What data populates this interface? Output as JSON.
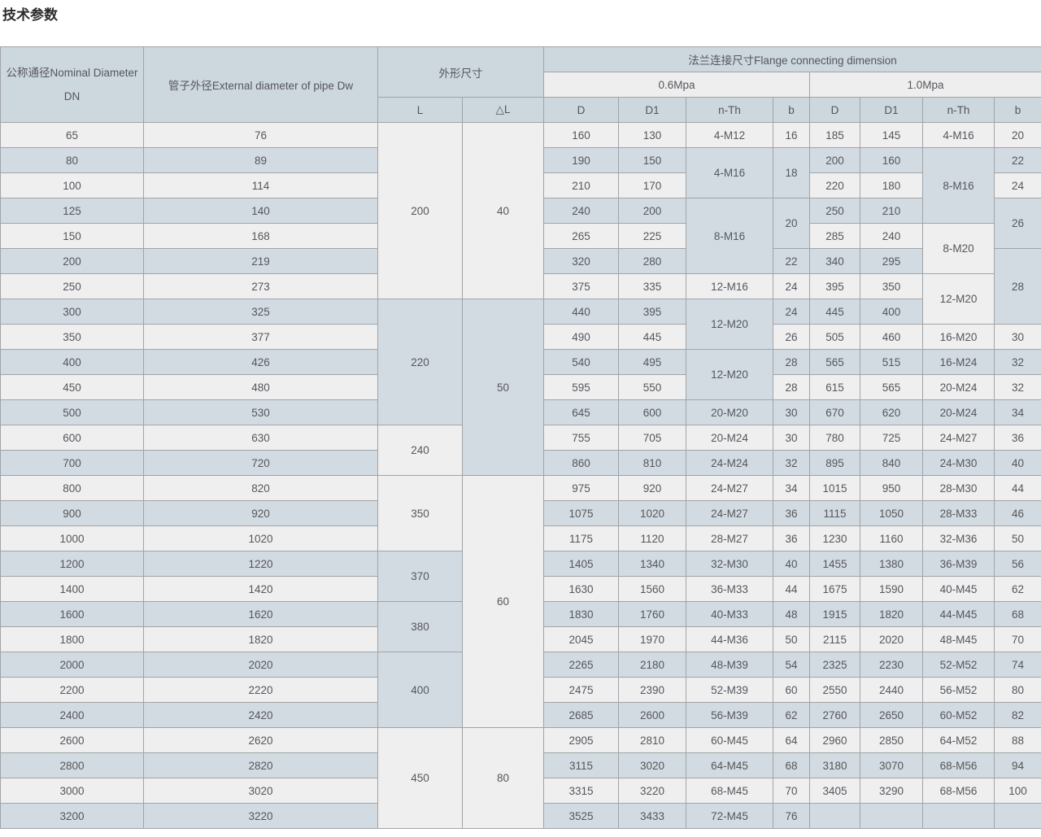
{
  "title": "技术参数",
  "table": {
    "headers": {
      "dn": "公称通径Nominal Diameter DN",
      "dw": "管子外径External diameter of pipe Dw",
      "overall": "外形尺寸",
      "flange": "法兰连接尺寸Flange connecting dimension",
      "p06": "0.6Mpa",
      "p10": "1.0Mpa",
      "l": "L",
      "dl": "△L",
      "d": "D",
      "d1": "D1",
      "nth": "n-Th",
      "b": "b"
    },
    "colors": {
      "header_blue": "#cdd7de",
      "header_light": "#eeeeee",
      "row_light": "#efefef",
      "row_blue": "#d3dbe2",
      "border": "#a0a4a7",
      "text": "#54575c"
    },
    "rows": [
      {
        "shade": "L",
        "cells": [
          {
            "t": "65"
          },
          {
            "t": "76"
          },
          {
            "t": "200",
            "rs": 7,
            "s": "L"
          },
          {
            "t": "40",
            "rs": 7,
            "s": "L"
          },
          {
            "t": "160"
          },
          {
            "t": "130"
          },
          {
            "t": "4-M12"
          },
          {
            "t": "16"
          },
          {
            "t": "185"
          },
          {
            "t": "145"
          },
          {
            "t": "4-M16"
          },
          {
            "t": "20"
          }
        ]
      },
      {
        "shade": "B",
        "cells": [
          {
            "t": "80"
          },
          {
            "t": "89"
          },
          {
            "t": "190"
          },
          {
            "t": "150"
          },
          {
            "t": "4-M16",
            "rs": 2,
            "s": "B"
          },
          {
            "t": "18",
            "rs": 2,
            "s": "B"
          },
          {
            "t": "200"
          },
          {
            "t": "160"
          },
          {
            "t": "8-M16",
            "rs": 3,
            "s": "B"
          },
          {
            "t": "22"
          }
        ]
      },
      {
        "shade": "L",
        "cells": [
          {
            "t": "100"
          },
          {
            "t": "114"
          },
          {
            "t": "210"
          },
          {
            "t": "170"
          },
          {
            "t": "220"
          },
          {
            "t": "180"
          },
          {
            "t": "24"
          }
        ]
      },
      {
        "shade": "B",
        "cells": [
          {
            "t": "125"
          },
          {
            "t": "140"
          },
          {
            "t": "240"
          },
          {
            "t": "200"
          },
          {
            "t": "8-M16",
            "rs": 3,
            "s": "B"
          },
          {
            "t": "20",
            "rs": 2,
            "s": "B"
          },
          {
            "t": "250"
          },
          {
            "t": "210"
          },
          {
            "t": "26",
            "rs": 2,
            "s": "B"
          }
        ]
      },
      {
        "shade": "L",
        "cells": [
          {
            "t": "150"
          },
          {
            "t": "168"
          },
          {
            "t": "265"
          },
          {
            "t": "225"
          },
          {
            "t": "285"
          },
          {
            "t": "240"
          },
          {
            "t": "8-M20",
            "rs": 2,
            "s": "L"
          }
        ]
      },
      {
        "shade": "B",
        "cells": [
          {
            "t": "200"
          },
          {
            "t": "219"
          },
          {
            "t": "320"
          },
          {
            "t": "280"
          },
          {
            "t": "22"
          },
          {
            "t": "340"
          },
          {
            "t": "295"
          },
          {
            "t": "28",
            "rs": 3,
            "s": "B"
          }
        ]
      },
      {
        "shade": "L",
        "cells": [
          {
            "t": "250"
          },
          {
            "t": "273"
          },
          {
            "t": "375"
          },
          {
            "t": "335"
          },
          {
            "t": "12-M16"
          },
          {
            "t": "24"
          },
          {
            "t": "395"
          },
          {
            "t": "350"
          },
          {
            "t": "12-M20",
            "rs": 2,
            "s": "L"
          }
        ]
      },
      {
        "shade": "B",
        "cells": [
          {
            "t": "300"
          },
          {
            "t": "325"
          },
          {
            "t": "220",
            "rs": 5,
            "s": "B"
          },
          {
            "t": "50",
            "rs": 7,
            "s": "B"
          },
          {
            "t": "440"
          },
          {
            "t": "395"
          },
          {
            "t": "12-M20",
            "rs": 2,
            "s": "B"
          },
          {
            "t": "24"
          },
          {
            "t": "445"
          },
          {
            "t": "400"
          }
        ]
      },
      {
        "shade": "L",
        "cells": [
          {
            "t": "350"
          },
          {
            "t": "377"
          },
          {
            "t": "490"
          },
          {
            "t": "445"
          },
          {
            "t": "26"
          },
          {
            "t": "505"
          },
          {
            "t": "460"
          },
          {
            "t": "16-M20"
          },
          {
            "t": "30"
          }
        ]
      },
      {
        "shade": "B",
        "cells": [
          {
            "t": "400"
          },
          {
            "t": "426"
          },
          {
            "t": "540"
          },
          {
            "t": "495"
          },
          {
            "t": "12-M20",
            "rs": 2,
            "s": "B"
          },
          {
            "t": "28"
          },
          {
            "t": "565"
          },
          {
            "t": "515"
          },
          {
            "t": "16-M24"
          },
          {
            "t": "32"
          }
        ]
      },
      {
        "shade": "L",
        "cells": [
          {
            "t": "450"
          },
          {
            "t": "480"
          },
          {
            "t": "595"
          },
          {
            "t": "550"
          },
          {
            "t": "28"
          },
          {
            "t": "615"
          },
          {
            "t": "565"
          },
          {
            "t": "20-M24"
          },
          {
            "t": "32"
          }
        ]
      },
      {
        "shade": "B",
        "cells": [
          {
            "t": "500"
          },
          {
            "t": "530"
          },
          {
            "t": "645"
          },
          {
            "t": "600"
          },
          {
            "t": "20-M20"
          },
          {
            "t": "30"
          },
          {
            "t": "670"
          },
          {
            "t": "620"
          },
          {
            "t": "20-M24"
          },
          {
            "t": "34"
          }
        ]
      },
      {
        "shade": "L",
        "cells": [
          {
            "t": "600"
          },
          {
            "t": "630"
          },
          {
            "t": "240",
            "rs": 2,
            "s": "L"
          },
          {
            "t": "755"
          },
          {
            "t": "705"
          },
          {
            "t": "20-M24"
          },
          {
            "t": "30"
          },
          {
            "t": "780"
          },
          {
            "t": "725"
          },
          {
            "t": "24-M27"
          },
          {
            "t": "36"
          }
        ]
      },
      {
        "shade": "B",
        "cells": [
          {
            "t": "700"
          },
          {
            "t": "720"
          },
          {
            "t": "860"
          },
          {
            "t": "810"
          },
          {
            "t": "24-M24"
          },
          {
            "t": "32"
          },
          {
            "t": "895"
          },
          {
            "t": "840"
          },
          {
            "t": "24-M30"
          },
          {
            "t": "40"
          }
        ]
      },
      {
        "shade": "L",
        "cells": [
          {
            "t": "800"
          },
          {
            "t": "820"
          },
          {
            "t": "350",
            "rs": 3,
            "s": "L"
          },
          {
            "t": "60",
            "rs": 10,
            "s": "L"
          },
          {
            "t": "975"
          },
          {
            "t": "920"
          },
          {
            "t": "24-M27"
          },
          {
            "t": "34"
          },
          {
            "t": "1015"
          },
          {
            "t": "950"
          },
          {
            "t": "28-M30"
          },
          {
            "t": "44"
          }
        ]
      },
      {
        "shade": "B",
        "cells": [
          {
            "t": "900"
          },
          {
            "t": "920"
          },
          {
            "t": "1075"
          },
          {
            "t": "1020"
          },
          {
            "t": "24-M27"
          },
          {
            "t": "36"
          },
          {
            "t": "1115"
          },
          {
            "t": "1050"
          },
          {
            "t": "28-M33"
          },
          {
            "t": "46"
          }
        ]
      },
      {
        "shade": "L",
        "cells": [
          {
            "t": "1000"
          },
          {
            "t": "1020"
          },
          {
            "t": "1175"
          },
          {
            "t": "1120"
          },
          {
            "t": "28-M27"
          },
          {
            "t": "36"
          },
          {
            "t": "1230"
          },
          {
            "t": "1160"
          },
          {
            "t": "32-M36"
          },
          {
            "t": "50"
          }
        ]
      },
      {
        "shade": "B",
        "cells": [
          {
            "t": "1200"
          },
          {
            "t": "1220"
          },
          {
            "t": "370",
            "rs": 2,
            "s": "B"
          },
          {
            "t": "1405"
          },
          {
            "t": "1340"
          },
          {
            "t": "32-M30"
          },
          {
            "t": "40"
          },
          {
            "t": "1455"
          },
          {
            "t": "1380"
          },
          {
            "t": "36-M39"
          },
          {
            "t": "56"
          }
        ]
      },
      {
        "shade": "L",
        "cells": [
          {
            "t": "1400"
          },
          {
            "t": "1420"
          },
          {
            "t": "1630"
          },
          {
            "t": "1560"
          },
          {
            "t": "36-M33"
          },
          {
            "t": "44"
          },
          {
            "t": "1675"
          },
          {
            "t": "1590"
          },
          {
            "t": "40-M45"
          },
          {
            "t": "62"
          }
        ]
      },
      {
        "shade": "B",
        "cells": [
          {
            "t": "1600"
          },
          {
            "t": "1620"
          },
          {
            "t": "380",
            "rs": 2,
            "s": "B"
          },
          {
            "t": "1830"
          },
          {
            "t": "1760"
          },
          {
            "t": "40-M33"
          },
          {
            "t": "48"
          },
          {
            "t": "1915"
          },
          {
            "t": "1820"
          },
          {
            "t": "44-M45"
          },
          {
            "t": "68"
          }
        ]
      },
      {
        "shade": "L",
        "cells": [
          {
            "t": "1800"
          },
          {
            "t": "1820"
          },
          {
            "t": "2045"
          },
          {
            "t": "1970"
          },
          {
            "t": "44-M36"
          },
          {
            "t": "50"
          },
          {
            "t": "2115"
          },
          {
            "t": "2020"
          },
          {
            "t": "48-M45"
          },
          {
            "t": "70"
          }
        ]
      },
      {
        "shade": "B",
        "cells": [
          {
            "t": "2000"
          },
          {
            "t": "2020"
          },
          {
            "t": "400",
            "rs": 3,
            "s": "B"
          },
          {
            "t": "2265"
          },
          {
            "t": "2180"
          },
          {
            "t": "48-M39"
          },
          {
            "t": "54"
          },
          {
            "t": "2325"
          },
          {
            "t": "2230"
          },
          {
            "t": "52-M52"
          },
          {
            "t": "74"
          }
        ]
      },
      {
        "shade": "L",
        "cells": [
          {
            "t": "2200"
          },
          {
            "t": "2220"
          },
          {
            "t": "2475"
          },
          {
            "t": "2390"
          },
          {
            "t": "52-M39"
          },
          {
            "t": "60"
          },
          {
            "t": "2550"
          },
          {
            "t": "2440"
          },
          {
            "t": "56-M52"
          },
          {
            "t": "80"
          }
        ]
      },
      {
        "shade": "B",
        "cells": [
          {
            "t": "2400"
          },
          {
            "t": "2420"
          },
          {
            "t": "2685"
          },
          {
            "t": "2600"
          },
          {
            "t": "56-M39"
          },
          {
            "t": "62"
          },
          {
            "t": "2760"
          },
          {
            "t": "2650"
          },
          {
            "t": "60-M52"
          },
          {
            "t": "82"
          }
        ]
      },
      {
        "shade": "L",
        "cells": [
          {
            "t": "2600"
          },
          {
            "t": "2620"
          },
          {
            "t": "450",
            "rs": 4,
            "s": "L"
          },
          {
            "t": "80",
            "rs": 4,
            "s": "L"
          },
          {
            "t": "2905"
          },
          {
            "t": "2810"
          },
          {
            "t": "60-M45"
          },
          {
            "t": "64"
          },
          {
            "t": "2960"
          },
          {
            "t": "2850"
          },
          {
            "t": "64-M52"
          },
          {
            "t": "88"
          }
        ]
      },
      {
        "shade": "B",
        "cells": [
          {
            "t": "2800"
          },
          {
            "t": "2820"
          },
          {
            "t": "3115"
          },
          {
            "t": "3020"
          },
          {
            "t": "64-M45"
          },
          {
            "t": "68"
          },
          {
            "t": "3180"
          },
          {
            "t": "3070"
          },
          {
            "t": "68-M56"
          },
          {
            "t": "94"
          }
        ]
      },
      {
        "shade": "L",
        "cells": [
          {
            "t": "3000"
          },
          {
            "t": "3020"
          },
          {
            "t": "3315"
          },
          {
            "t": "3220"
          },
          {
            "t": "68-M45"
          },
          {
            "t": "70"
          },
          {
            "t": "3405"
          },
          {
            "t": "3290"
          },
          {
            "t": "68-M56"
          },
          {
            "t": "100"
          }
        ]
      },
      {
        "shade": "B",
        "cells": [
          {
            "t": "3200"
          },
          {
            "t": "3220"
          },
          {
            "t": "3525"
          },
          {
            "t": "3433"
          },
          {
            "t": "72-M45"
          },
          {
            "t": "76"
          },
          {
            "t": ""
          },
          {
            "t": ""
          },
          {
            "t": ""
          },
          {
            "t": ""
          }
        ]
      }
    ]
  }
}
